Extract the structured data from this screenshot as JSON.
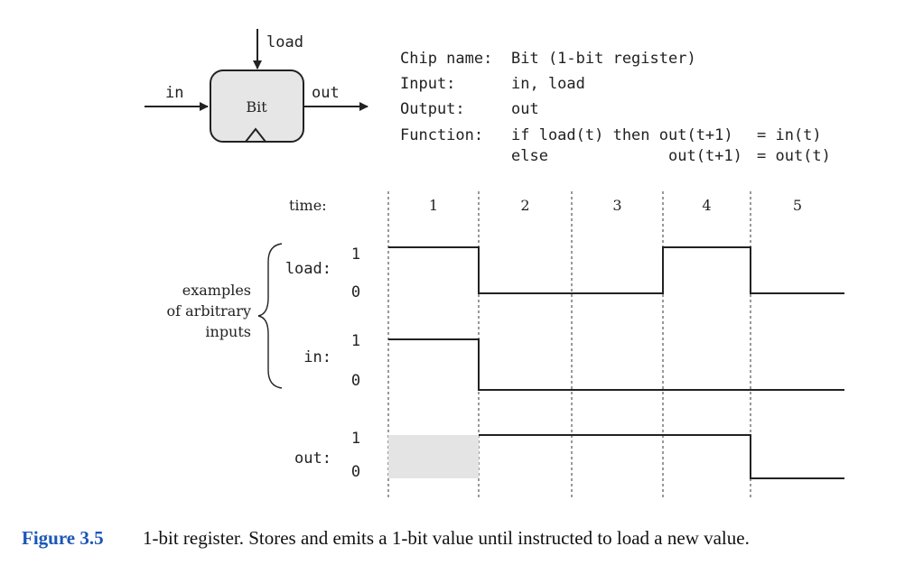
{
  "chip": {
    "name_label": "Bit",
    "load_pin": "load",
    "in_pin": "in",
    "out_pin": "out"
  },
  "spec": {
    "rows": [
      [
        "Chip name:",
        "Bit (1-bit register)",
        ""
      ],
      [
        "Input:",
        "in, load",
        ""
      ],
      [
        "Output:",
        "out",
        ""
      ],
      [
        "Function:",
        "if load(t) then out(t+1)",
        "= in(t)"
      ],
      [
        "",
        "else",
        "out(t+1)",
        "= out(t)"
      ]
    ]
  },
  "timing": {
    "time_label": "time:",
    "cycles": [
      "1",
      "2",
      "3",
      "4",
      "5"
    ],
    "brace_label": [
      "examples",
      "of arbitrary",
      "inputs"
    ],
    "signals": [
      {
        "name": "load:",
        "hi": "1",
        "lo": "0",
        "levels": [
          1,
          0,
          0,
          1,
          0
        ]
      },
      {
        "name": "in:",
        "hi": "1",
        "lo": "0",
        "levels": [
          1,
          0,
          0,
          0,
          0
        ]
      },
      {
        "name": "out:",
        "hi": "1",
        "lo": "0",
        "levels": [
          null,
          1,
          1,
          1,
          0
        ]
      }
    ]
  },
  "caption": {
    "number": "Figure 3.5",
    "text": "1-bit register. Stores and emits a 1-bit value until instructed to load a new value."
  }
}
